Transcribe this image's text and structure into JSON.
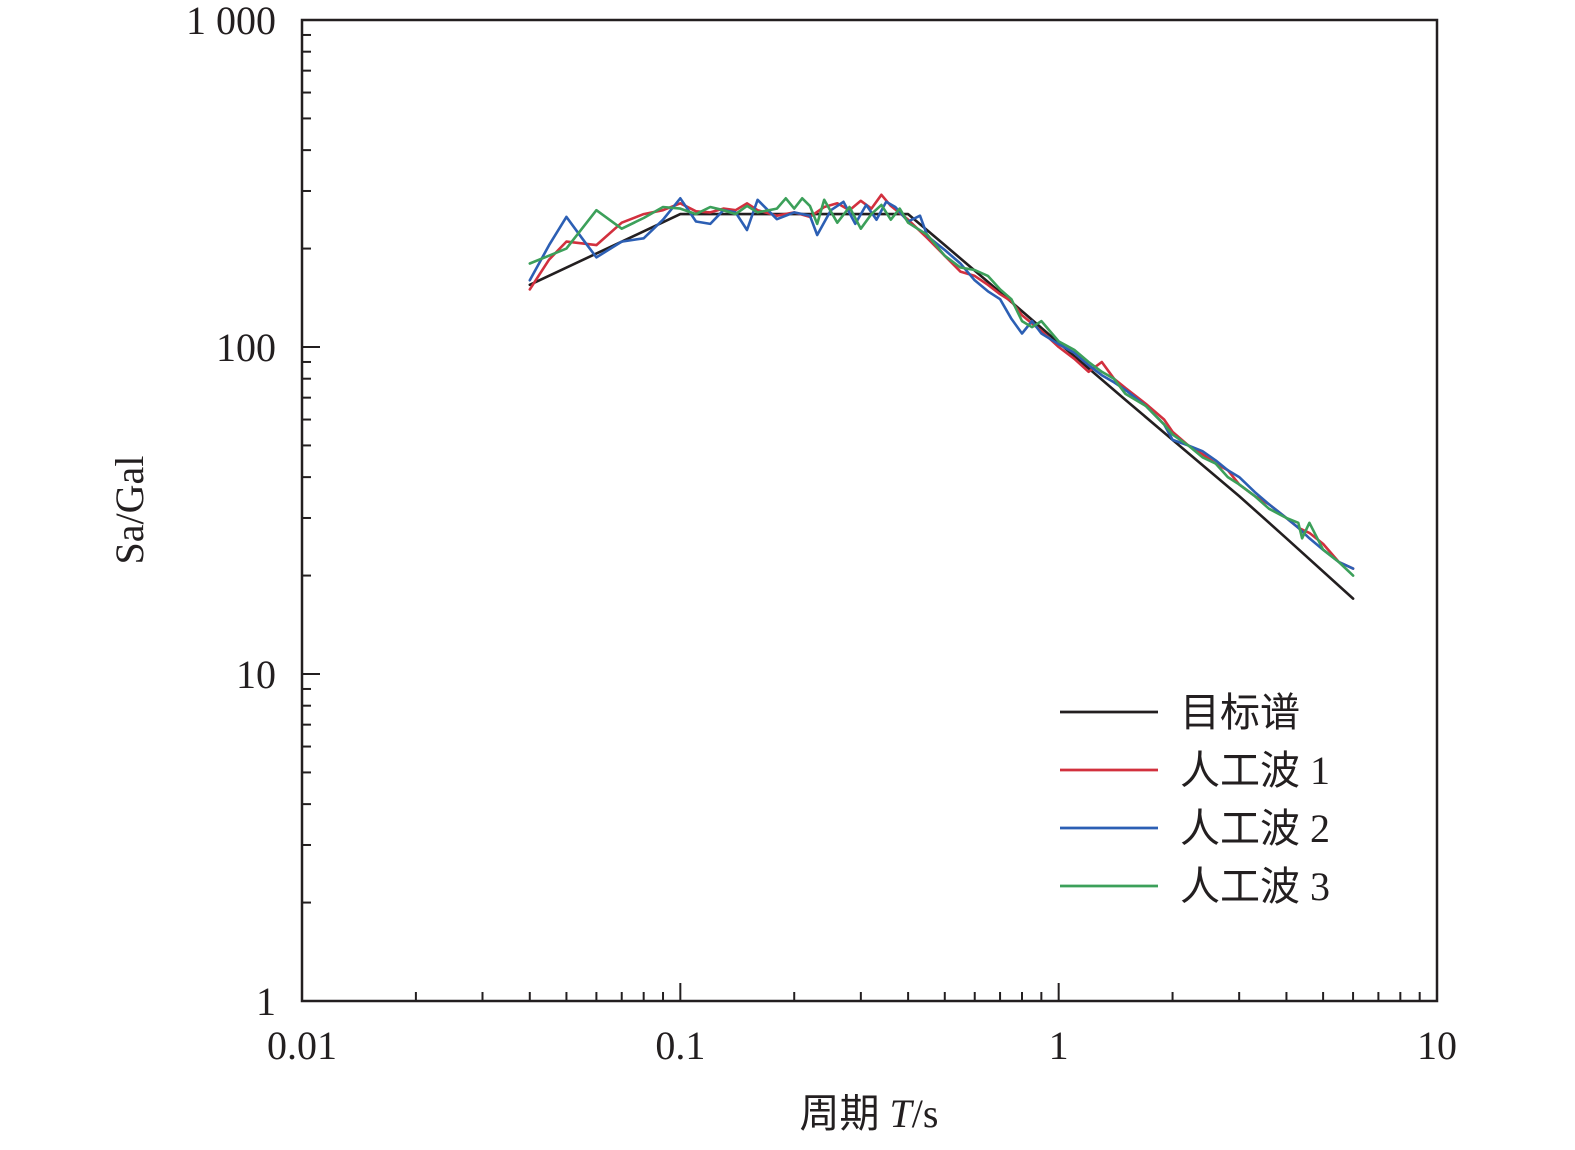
{
  "chart_data": {
    "type": "line",
    "xlabel_prefix": "周期 ",
    "xlabel_var": "T",
    "xlabel_suffix": "/s",
    "ylabel": "Sa/Gal",
    "xscale": "log",
    "yscale": "log",
    "xlim": [
      0.01,
      10
    ],
    "ylim": [
      1,
      1000
    ],
    "xticks": [
      0.01,
      0.1,
      1,
      10
    ],
    "xtick_labels": [
      "0.01",
      "0.1",
      "1",
      "10"
    ],
    "yticks": [
      1,
      10,
      100,
      1000
    ],
    "ytick_labels": [
      "1",
      "10",
      "100",
      "1 000"
    ],
    "grid": false,
    "legend_position": "lower-right",
    "series": [
      {
        "name": "目标谱",
        "color": "#231f20",
        "x": [
          0.04,
          0.1,
          0.4,
          0.5,
          0.7,
          1.0,
          1.5,
          2.0,
          3.0,
          4.0,
          6.0
        ],
        "y": [
          155,
          255,
          255,
          205,
          147,
          103,
          69,
          52,
          35,
          26,
          17
        ]
      },
      {
        "name": "人工波 1",
        "color": "#d2303e",
        "x": [
          0.04,
          0.045,
          0.05,
          0.06,
          0.07,
          0.08,
          0.09,
          0.1,
          0.11,
          0.12,
          0.13,
          0.14,
          0.15,
          0.16,
          0.18,
          0.2,
          0.22,
          0.24,
          0.26,
          0.28,
          0.3,
          0.32,
          0.34,
          0.36,
          0.4,
          0.45,
          0.5,
          0.55,
          0.6,
          0.65,
          0.7,
          0.75,
          0.8,
          0.85,
          0.9,
          1.0,
          1.1,
          1.2,
          1.3,
          1.4,
          1.5,
          1.7,
          1.9,
          2.0,
          2.2,
          2.4,
          2.6,
          2.8,
          3.0,
          3.3,
          3.6,
          4.0,
          4.3,
          4.6,
          5.0,
          5.5,
          6.0
        ],
        "y": [
          150,
          185,
          210,
          205,
          240,
          255,
          262,
          275,
          260,
          258,
          265,
          262,
          275,
          262,
          252,
          258,
          250,
          268,
          275,
          262,
          280,
          265,
          292,
          270,
          245,
          215,
          190,
          170,
          165,
          155,
          145,
          138,
          125,
          118,
          112,
          100,
          92,
          84,
          90,
          80,
          75,
          67,
          60,
          55,
          50,
          47,
          44,
          42,
          38,
          35,
          33,
          30,
          28,
          27,
          25,
          22,
          21
        ]
      },
      {
        "name": "人工波 2",
        "color": "#2c5fb4",
        "x": [
          0.04,
          0.045,
          0.05,
          0.055,
          0.06,
          0.07,
          0.08,
          0.09,
          0.1,
          0.11,
          0.12,
          0.13,
          0.14,
          0.15,
          0.16,
          0.18,
          0.2,
          0.22,
          0.23,
          0.25,
          0.27,
          0.29,
          0.31,
          0.33,
          0.35,
          0.37,
          0.4,
          0.43,
          0.45,
          0.5,
          0.55,
          0.6,
          0.65,
          0.7,
          0.75,
          0.8,
          0.85,
          0.9,
          1.0,
          1.1,
          1.2,
          1.3,
          1.4,
          1.5,
          1.7,
          1.9,
          2.0,
          2.2,
          2.4,
          2.6,
          2.8,
          3.0,
          3.3,
          3.6,
          4.0,
          4.3,
          4.6,
          5.0,
          5.5,
          6.0
        ],
        "y": [
          160,
          205,
          250,
          215,
          188,
          210,
          215,
          245,
          285,
          242,
          238,
          262,
          258,
          228,
          282,
          246,
          258,
          252,
          220,
          262,
          278,
          238,
          272,
          245,
          278,
          268,
          242,
          252,
          218,
          198,
          180,
          160,
          148,
          140,
          122,
          110,
          120,
          110,
          102,
          96,
          88,
          82,
          78,
          74,
          66,
          58,
          52,
          50,
          48,
          45,
          42,
          40,
          36,
          33,
          30,
          28,
          26,
          24,
          22,
          21
        ]
      },
      {
        "name": "人工波 3",
        "color": "#3ca05a",
        "x": [
          0.04,
          0.05,
          0.06,
          0.07,
          0.08,
          0.09,
          0.1,
          0.11,
          0.12,
          0.13,
          0.14,
          0.15,
          0.16,
          0.18,
          0.19,
          0.2,
          0.21,
          0.22,
          0.23,
          0.24,
          0.26,
          0.28,
          0.3,
          0.32,
          0.34,
          0.36,
          0.38,
          0.4,
          0.45,
          0.5,
          0.55,
          0.6,
          0.65,
          0.7,
          0.75,
          0.8,
          0.85,
          0.9,
          1.0,
          1.1,
          1.2,
          1.3,
          1.4,
          1.5,
          1.7,
          1.9,
          2.0,
          2.2,
          2.4,
          2.6,
          2.8,
          3.0,
          3.3,
          3.6,
          4.0,
          4.3,
          4.4,
          4.6,
          5.0,
          5.5,
          6.0
        ],
        "y": [
          180,
          200,
          262,
          230,
          248,
          268,
          265,
          255,
          268,
          262,
          255,
          270,
          258,
          265,
          285,
          265,
          285,
          270,
          238,
          282,
          240,
          268,
          230,
          255,
          272,
          245,
          265,
          240,
          220,
          190,
          175,
          172,
          165,
          150,
          140,
          120,
          115,
          120,
          104,
          98,
          90,
          84,
          80,
          72,
          66,
          58,
          54,
          50,
          46,
          44,
          40,
          38,
          35,
          32,
          30,
          29,
          26,
          29,
          24,
          22,
          20
        ]
      }
    ]
  }
}
